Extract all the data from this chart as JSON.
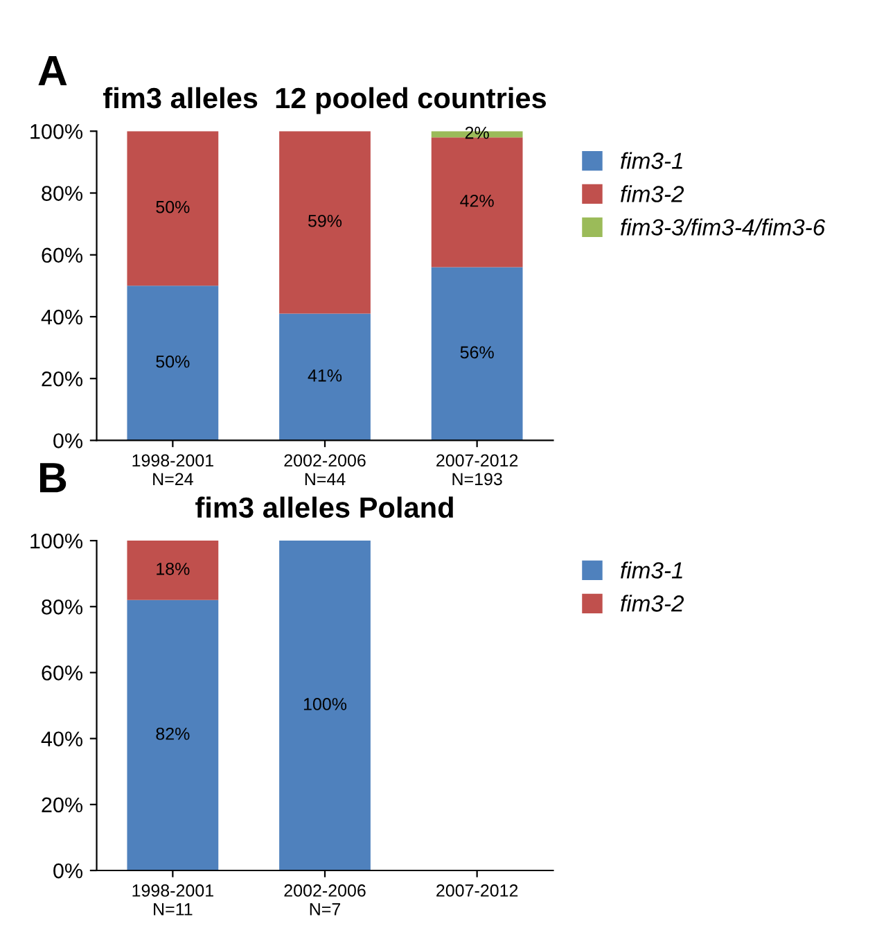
{
  "chart_data": [
    {
      "type": "bar",
      "stacked": true,
      "title": "fim3 alleles  12 pooled countries",
      "annotations": [
        "A"
      ],
      "categories": [
        "1998-2001\nN=24",
        "2002-2006\nN=44",
        "2007-2012\nN=193"
      ],
      "series": [
        {
          "name": "fim3-1",
          "color": "#4f81bd",
          "values": [
            50,
            41,
            56
          ],
          "value_labels": [
            "50%",
            "41%",
            "56%"
          ]
        },
        {
          "name": "fim3-2",
          "color": "#c0504d",
          "values": [
            50,
            59,
            42
          ],
          "value_labels": [
            "50%",
            "59%",
            "42%"
          ]
        },
        {
          "name": "fim3-3/fim3-4/fim3-6",
          "color": "#9bbb59",
          "values": [
            null,
            null,
            2
          ],
          "value_labels": [
            null,
            null,
            "2%"
          ]
        }
      ],
      "ylim": [
        0,
        100
      ],
      "yticks": [
        {
          "value": 0,
          "label": "0%"
        },
        {
          "value": 20,
          "label": "20%"
        },
        {
          "value": 40,
          "label": "40%"
        },
        {
          "value": 60,
          "label": "60%"
        },
        {
          "value": 80,
          "label": "80%"
        },
        {
          "value": 100,
          "label": "100%"
        }
      ],
      "legend": "right"
    },
    {
      "type": "bar",
      "stacked": true,
      "title": "fim3 alleles Poland",
      "annotations": [
        "B"
      ],
      "categories": [
        "1998-2001\nN=11",
        "2002-2006\nN=7",
        "2007-2012"
      ],
      "series": [
        {
          "name": "fim3-1",
          "color": "#4f81bd",
          "values": [
            82,
            100,
            null
          ],
          "value_labels": [
            "82%",
            "100%",
            null
          ]
        },
        {
          "name": "fim3-2",
          "color": "#c0504d",
          "values": [
            18,
            null,
            null
          ],
          "value_labels": [
            "18%",
            null,
            null
          ]
        }
      ],
      "ylim": [
        0,
        100
      ],
      "yticks": [
        {
          "value": 0,
          "label": "0%"
        },
        {
          "value": 20,
          "label": "20%"
        },
        {
          "value": 40,
          "label": "40%"
        },
        {
          "value": 60,
          "label": "60%"
        },
        {
          "value": 80,
          "label": "80%"
        },
        {
          "value": 100,
          "label": "100%"
        }
      ],
      "legend": "right"
    }
  ]
}
